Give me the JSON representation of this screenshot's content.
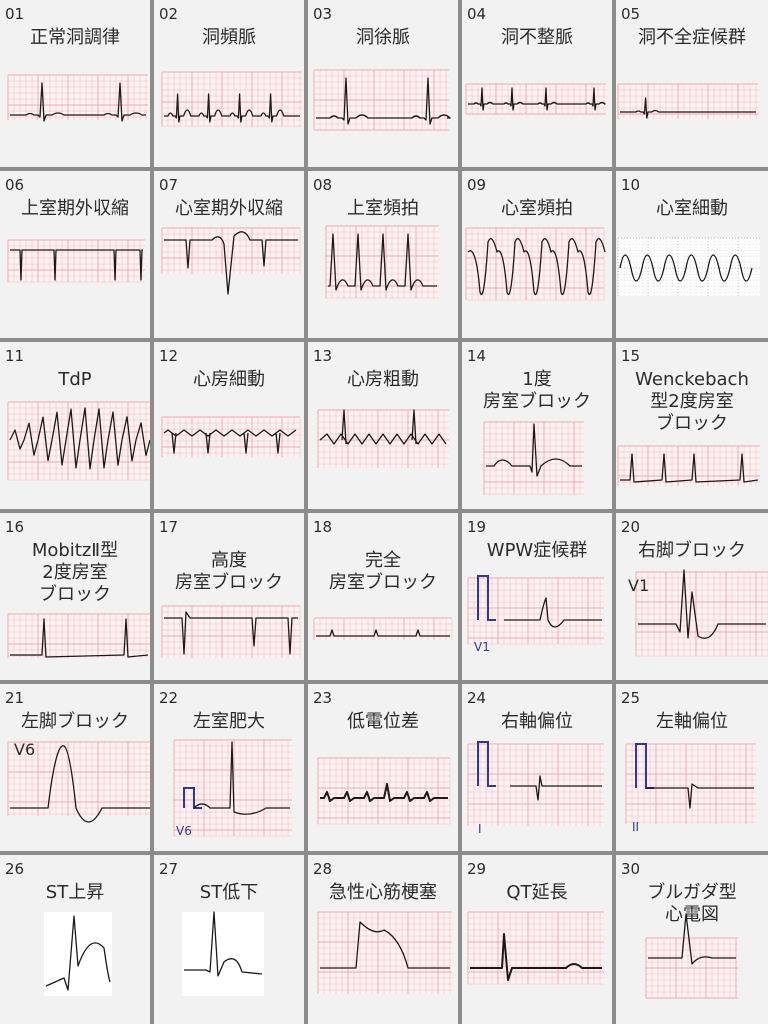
{
  "cells": [
    {
      "num": "01",
      "name": "正常洞調律"
    },
    {
      "num": "02",
      "name": "洞頻脈"
    },
    {
      "num": "03",
      "name": "洞徐脈"
    },
    {
      "num": "04",
      "name": "洞不整脈"
    },
    {
      "num": "05",
      "name": "洞不全症候群"
    },
    {
      "num": "06",
      "name": "上室期外収縮"
    },
    {
      "num": "07",
      "name": "心室期外収縮"
    },
    {
      "num": "08",
      "name": "上室頻拍"
    },
    {
      "num": "09",
      "name": "心室頻拍"
    },
    {
      "num": "10",
      "name": "心室細動"
    },
    {
      "num": "11",
      "name": "TdP"
    },
    {
      "num": "12",
      "name": "心房細動"
    },
    {
      "num": "13",
      "name": "心房粗動"
    },
    {
      "num": "14",
      "name": "1度\n房室ブロック"
    },
    {
      "num": "15",
      "name": "Wenckebach\n型2度房室\nブロック"
    },
    {
      "num": "16",
      "name": "MobitzⅡ型\n2度房室\nブロック"
    },
    {
      "num": "17",
      "name": "高度\n房室ブロック"
    },
    {
      "num": "18",
      "name": "完全\n房室ブロック"
    },
    {
      "num": "19",
      "name": "WPW症候群",
      "lead": "V1"
    },
    {
      "num": "20",
      "name": "右脚ブロック",
      "lead": "V1"
    },
    {
      "num": "21",
      "name": "左脚ブロック",
      "lead": "V6"
    },
    {
      "num": "22",
      "name": "左室肥大",
      "lead": "V6"
    },
    {
      "num": "23",
      "name": "低電位差"
    },
    {
      "num": "24",
      "name": "右軸偏位",
      "lead": "I"
    },
    {
      "num": "25",
      "name": "左軸偏位",
      "lead": "II"
    },
    {
      "num": "26",
      "name": "ST上昇"
    },
    {
      "num": "27",
      "name": "ST低下"
    },
    {
      "num": "28",
      "name": "急性心筋梗塞"
    },
    {
      "num": "29",
      "name": "QT延長"
    },
    {
      "num": "30",
      "name": "ブルガダ型\n心電図"
    }
  ],
  "colors": {
    "grid_line": "#f0a8b0",
    "grid_bg": "#fdf2f3",
    "trace": "#1a1a1a",
    "lead_mark": "#2e3a8c"
  }
}
